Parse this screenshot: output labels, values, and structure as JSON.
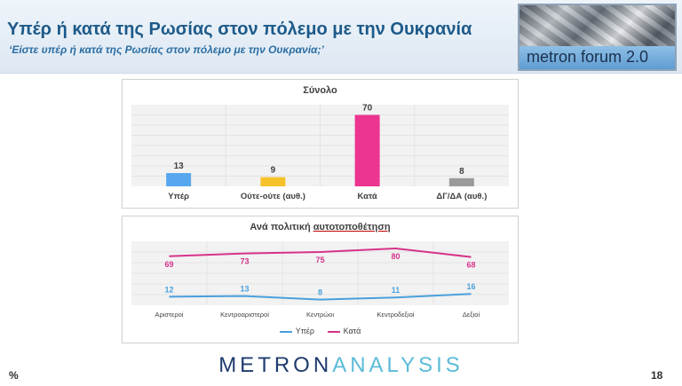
{
  "header": {
    "title": "Υπέρ ή κατά της Ρωσίας στον πόλεμο με την Ουκρανία",
    "subtitle": "‘Είστε υπέρ ή κατά της Ρωσίας στον πόλεμο με την Ουκρανία;’",
    "logo_text": "metron forum 2.0"
  },
  "footer": {
    "unit": "%",
    "brand_part1": "METRON",
    "brand_part2": "ANALYSIS",
    "page_number": "18"
  },
  "chart_data": [
    {
      "type": "bar",
      "title": "Σύνολο",
      "categories": [
        "Υπέρ",
        "Ούτε-ούτε (αυθ.)",
        "Κατά",
        "ΔΓ/ΔΑ (αυθ.)"
      ],
      "values": [
        13,
        9,
        70,
        8
      ],
      "colors": [
        "#56a7ee",
        "#f7c12a",
        "#ec3590",
        "#9b9b9b"
      ],
      "ylim": [
        0,
        80
      ],
      "grid": true,
      "data_labels": true
    },
    {
      "type": "line",
      "title_part1": "Ανά πολιτική",
      "title_part2": "αυτοτοποθέτηση",
      "categories": [
        "Αριστεροί",
        "Κεντροαριστεροί",
        "Κεντρώοι",
        "Κεντροδεξιοί",
        "Δεξιοί"
      ],
      "series": [
        {
          "name": "Υπέρ",
          "values": [
            12,
            13,
            8,
            11,
            16
          ],
          "color": "#4a9fdc"
        },
        {
          "name": "Κατά",
          "values": [
            69,
            73,
            75,
            80,
            68
          ],
          "color": "#d6338a"
        }
      ],
      "ylim": [
        0,
        90
      ],
      "grid": true,
      "legend_position": "bottom",
      "data_labels": true
    }
  ]
}
